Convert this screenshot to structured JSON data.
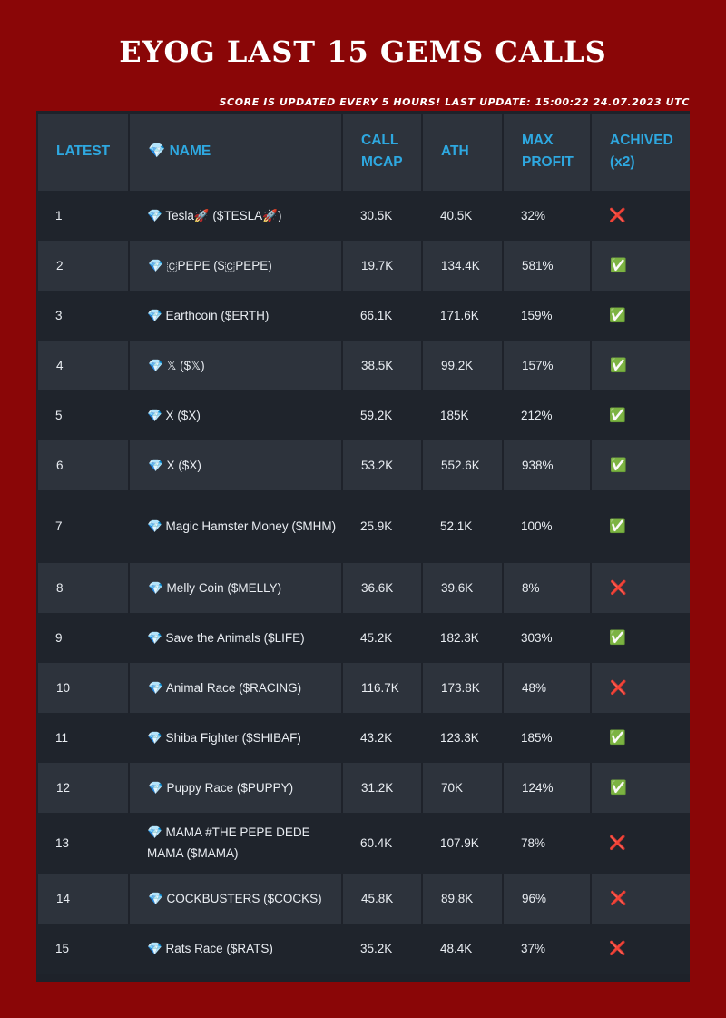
{
  "header": {
    "title": "EYOG LAST 15 GEMS CALLS",
    "subtitle": "SCORE IS UPDATED EVERY 5 HOURS! LAST UPDATE: 15:00:22 24.07.2023 UTC"
  },
  "table": {
    "columns": [
      "LATEST",
      "💎 NAME",
      "CALL MCAP",
      "ATH",
      "MAX PROFIT",
      "ACHIVED (x2)"
    ],
    "rows": [
      {
        "latest": "1",
        "name": "💎 Tesla🚀 ($TESLA🚀)",
        "call_mcap": "30.5K",
        "ath": "40.5K",
        "max_profit": "32%",
        "achived": "❌"
      },
      {
        "latest": "2",
        "name": "💎 🇨PEPE ($🇨PEPE)",
        "call_mcap": "19.7K",
        "ath": "134.4K",
        "max_profit": "581%",
        "achived": "✅"
      },
      {
        "latest": "3",
        "name": "💎 Earthcoin ($ERTH)",
        "call_mcap": "66.1K",
        "ath": "171.6K",
        "max_profit": "159%",
        "achived": "✅"
      },
      {
        "latest": "4",
        "name": "💎 𝕏 ($𝕏)",
        "call_mcap": "38.5K",
        "ath": "99.2K",
        "max_profit": "157%",
        "achived": "✅"
      },
      {
        "latest": "5",
        "name": "💎 X ($X)",
        "call_mcap": "59.2K",
        "ath": "185K",
        "max_profit": "212%",
        "achived": "✅"
      },
      {
        "latest": "6",
        "name": "💎 X ($X)",
        "call_mcap": "53.2K",
        "ath": "552.6K",
        "max_profit": "938%",
        "achived": "✅"
      },
      {
        "latest": "7",
        "name": "💎 Magic Hamster Money ($MHM)",
        "call_mcap": "25.9K",
        "ath": "52.1K",
        "max_profit": "100%",
        "achived": "✅"
      },
      {
        "latest": "8",
        "name": "💎 Melly Coin ($MELLY)",
        "call_mcap": "36.6K",
        "ath": "39.6K",
        "max_profit": "8%",
        "achived": "❌"
      },
      {
        "latest": "9",
        "name": "💎 Save the Animals ($LIFE)",
        "call_mcap": "45.2K",
        "ath": "182.3K",
        "max_profit": "303%",
        "achived": "✅"
      },
      {
        "latest": "10",
        "name": "💎 Animal Race ($RACING)",
        "call_mcap": "116.7K",
        "ath": "173.8K",
        "max_profit": "48%",
        "achived": "❌"
      },
      {
        "latest": "11",
        "name": "💎 Shiba Fighter ($SHIBAF)",
        "call_mcap": "43.2K",
        "ath": "123.3K",
        "max_profit": "185%",
        "achived": "✅"
      },
      {
        "latest": "12",
        "name": "💎 Puppy Race ($PUPPY)",
        "call_mcap": "31.2K",
        "ath": "70K",
        "max_profit": "124%",
        "achived": "✅"
      },
      {
        "latest": "13",
        "name": "💎 MAMA #THE PEPE DEDE MAMA ($MAMA)",
        "call_mcap": "60.4K",
        "ath": "107.9K",
        "max_profit": "78%",
        "achived": "❌"
      },
      {
        "latest": "14",
        "name": "💎 COCKBUSTERS ($COCKS)",
        "call_mcap": "45.8K",
        "ath": "89.8K",
        "max_profit": "96%",
        "achived": "❌"
      },
      {
        "latest": "15",
        "name": "💎 Rats Race ($RATS)",
        "call_mcap": "35.2K",
        "ath": "48.4K",
        "max_profit": "37%",
        "achived": "❌"
      }
    ]
  }
}
